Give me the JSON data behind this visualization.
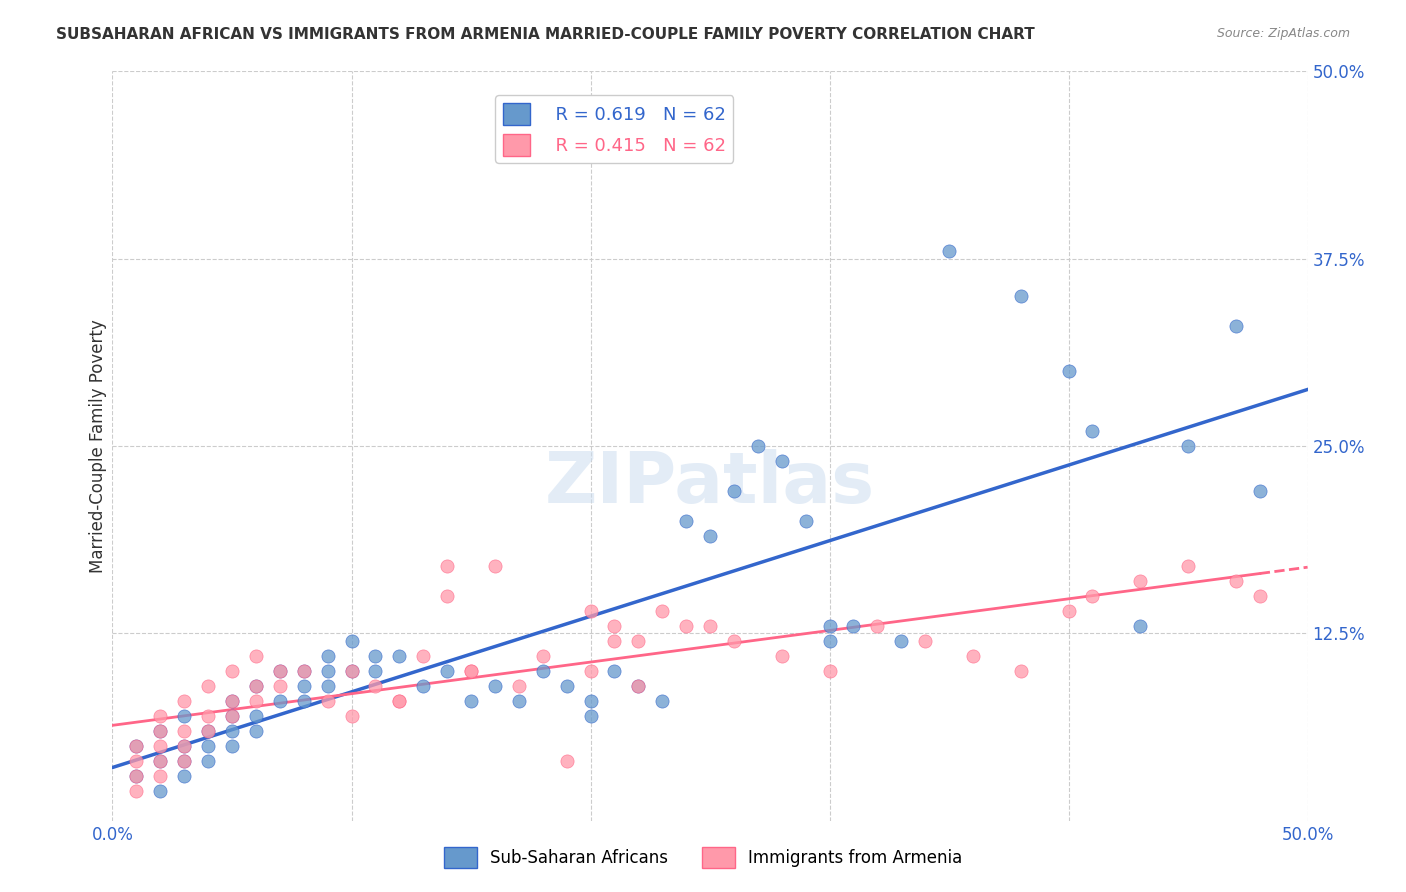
{
  "title": "SUBSAHARAN AFRICAN VS IMMIGRANTS FROM ARMENIA MARRIED-COUPLE FAMILY POVERTY CORRELATION CHART",
  "source": "Source: ZipAtlas.com",
  "ylabel": "Married-Couple Family Poverty",
  "xlim": [
    0.0,
    0.5
  ],
  "ylim": [
    0.0,
    0.5
  ],
  "ytick_labels": [
    "12.5%",
    "25.0%",
    "37.5%",
    "50.0%"
  ],
  "ytick_positions": [
    0.125,
    0.25,
    0.375,
    0.5
  ],
  "grid_color": "#cccccc",
  "background_color": "#ffffff",
  "legend_r1": "R = 0.619",
  "legend_n1": "N = 62",
  "legend_r2": "R = 0.415",
  "legend_n2": "N = 62",
  "blue_color": "#6699cc",
  "pink_color": "#ff99aa",
  "blue_line_color": "#3366cc",
  "pink_line_color": "#ff6688",
  "blue_scatter_x": [
    0.01,
    0.01,
    0.02,
    0.02,
    0.02,
    0.03,
    0.03,
    0.03,
    0.03,
    0.04,
    0.04,
    0.04,
    0.05,
    0.05,
    0.05,
    0.05,
    0.06,
    0.06,
    0.06,
    0.07,
    0.07,
    0.08,
    0.08,
    0.08,
    0.09,
    0.09,
    0.09,
    0.1,
    0.1,
    0.11,
    0.11,
    0.12,
    0.13,
    0.14,
    0.15,
    0.16,
    0.17,
    0.18,
    0.19,
    0.2,
    0.2,
    0.21,
    0.22,
    0.23,
    0.24,
    0.25,
    0.26,
    0.27,
    0.28,
    0.29,
    0.3,
    0.3,
    0.31,
    0.33,
    0.35,
    0.38,
    0.4,
    0.41,
    0.43,
    0.45,
    0.47,
    0.48
  ],
  "blue_scatter_y": [
    0.03,
    0.05,
    0.02,
    0.04,
    0.06,
    0.04,
    0.05,
    0.07,
    0.03,
    0.05,
    0.06,
    0.04,
    0.06,
    0.05,
    0.07,
    0.08,
    0.06,
    0.07,
    0.09,
    0.08,
    0.1,
    0.09,
    0.1,
    0.08,
    0.1,
    0.11,
    0.09,
    0.1,
    0.12,
    0.11,
    0.1,
    0.11,
    0.09,
    0.1,
    0.08,
    0.09,
    0.08,
    0.1,
    0.09,
    0.08,
    0.07,
    0.1,
    0.09,
    0.08,
    0.2,
    0.19,
    0.22,
    0.25,
    0.24,
    0.2,
    0.13,
    0.12,
    0.13,
    0.12,
    0.38,
    0.35,
    0.3,
    0.26,
    0.13,
    0.25,
    0.33,
    0.22
  ],
  "pink_scatter_x": [
    0.01,
    0.01,
    0.01,
    0.01,
    0.02,
    0.02,
    0.02,
    0.02,
    0.02,
    0.03,
    0.03,
    0.03,
    0.03,
    0.04,
    0.04,
    0.04,
    0.05,
    0.05,
    0.05,
    0.06,
    0.06,
    0.06,
    0.07,
    0.07,
    0.08,
    0.09,
    0.1,
    0.11,
    0.12,
    0.13,
    0.14,
    0.15,
    0.17,
    0.19,
    0.2,
    0.21,
    0.22,
    0.23,
    0.24,
    0.25,
    0.26,
    0.28,
    0.3,
    0.32,
    0.34,
    0.36,
    0.38,
    0.4,
    0.41,
    0.43,
    0.45,
    0.47,
    0.48,
    0.1,
    0.12,
    0.14,
    0.15,
    0.16,
    0.18,
    0.2,
    0.21,
    0.22
  ],
  "pink_scatter_y": [
    0.02,
    0.03,
    0.04,
    0.05,
    0.03,
    0.05,
    0.06,
    0.04,
    0.07,
    0.04,
    0.06,
    0.08,
    0.05,
    0.07,
    0.09,
    0.06,
    0.08,
    0.1,
    0.07,
    0.09,
    0.11,
    0.08,
    0.1,
    0.09,
    0.1,
    0.08,
    0.1,
    0.09,
    0.08,
    0.11,
    0.17,
    0.1,
    0.09,
    0.04,
    0.1,
    0.12,
    0.09,
    0.14,
    0.13,
    0.13,
    0.12,
    0.11,
    0.1,
    0.13,
    0.12,
    0.11,
    0.1,
    0.14,
    0.15,
    0.16,
    0.17,
    0.16,
    0.15,
    0.07,
    0.08,
    0.15,
    0.1,
    0.17,
    0.11,
    0.14,
    0.13,
    0.12
  ],
  "x_grid_positions": [
    0.0,
    0.1,
    0.2,
    0.3,
    0.4,
    0.5
  ]
}
